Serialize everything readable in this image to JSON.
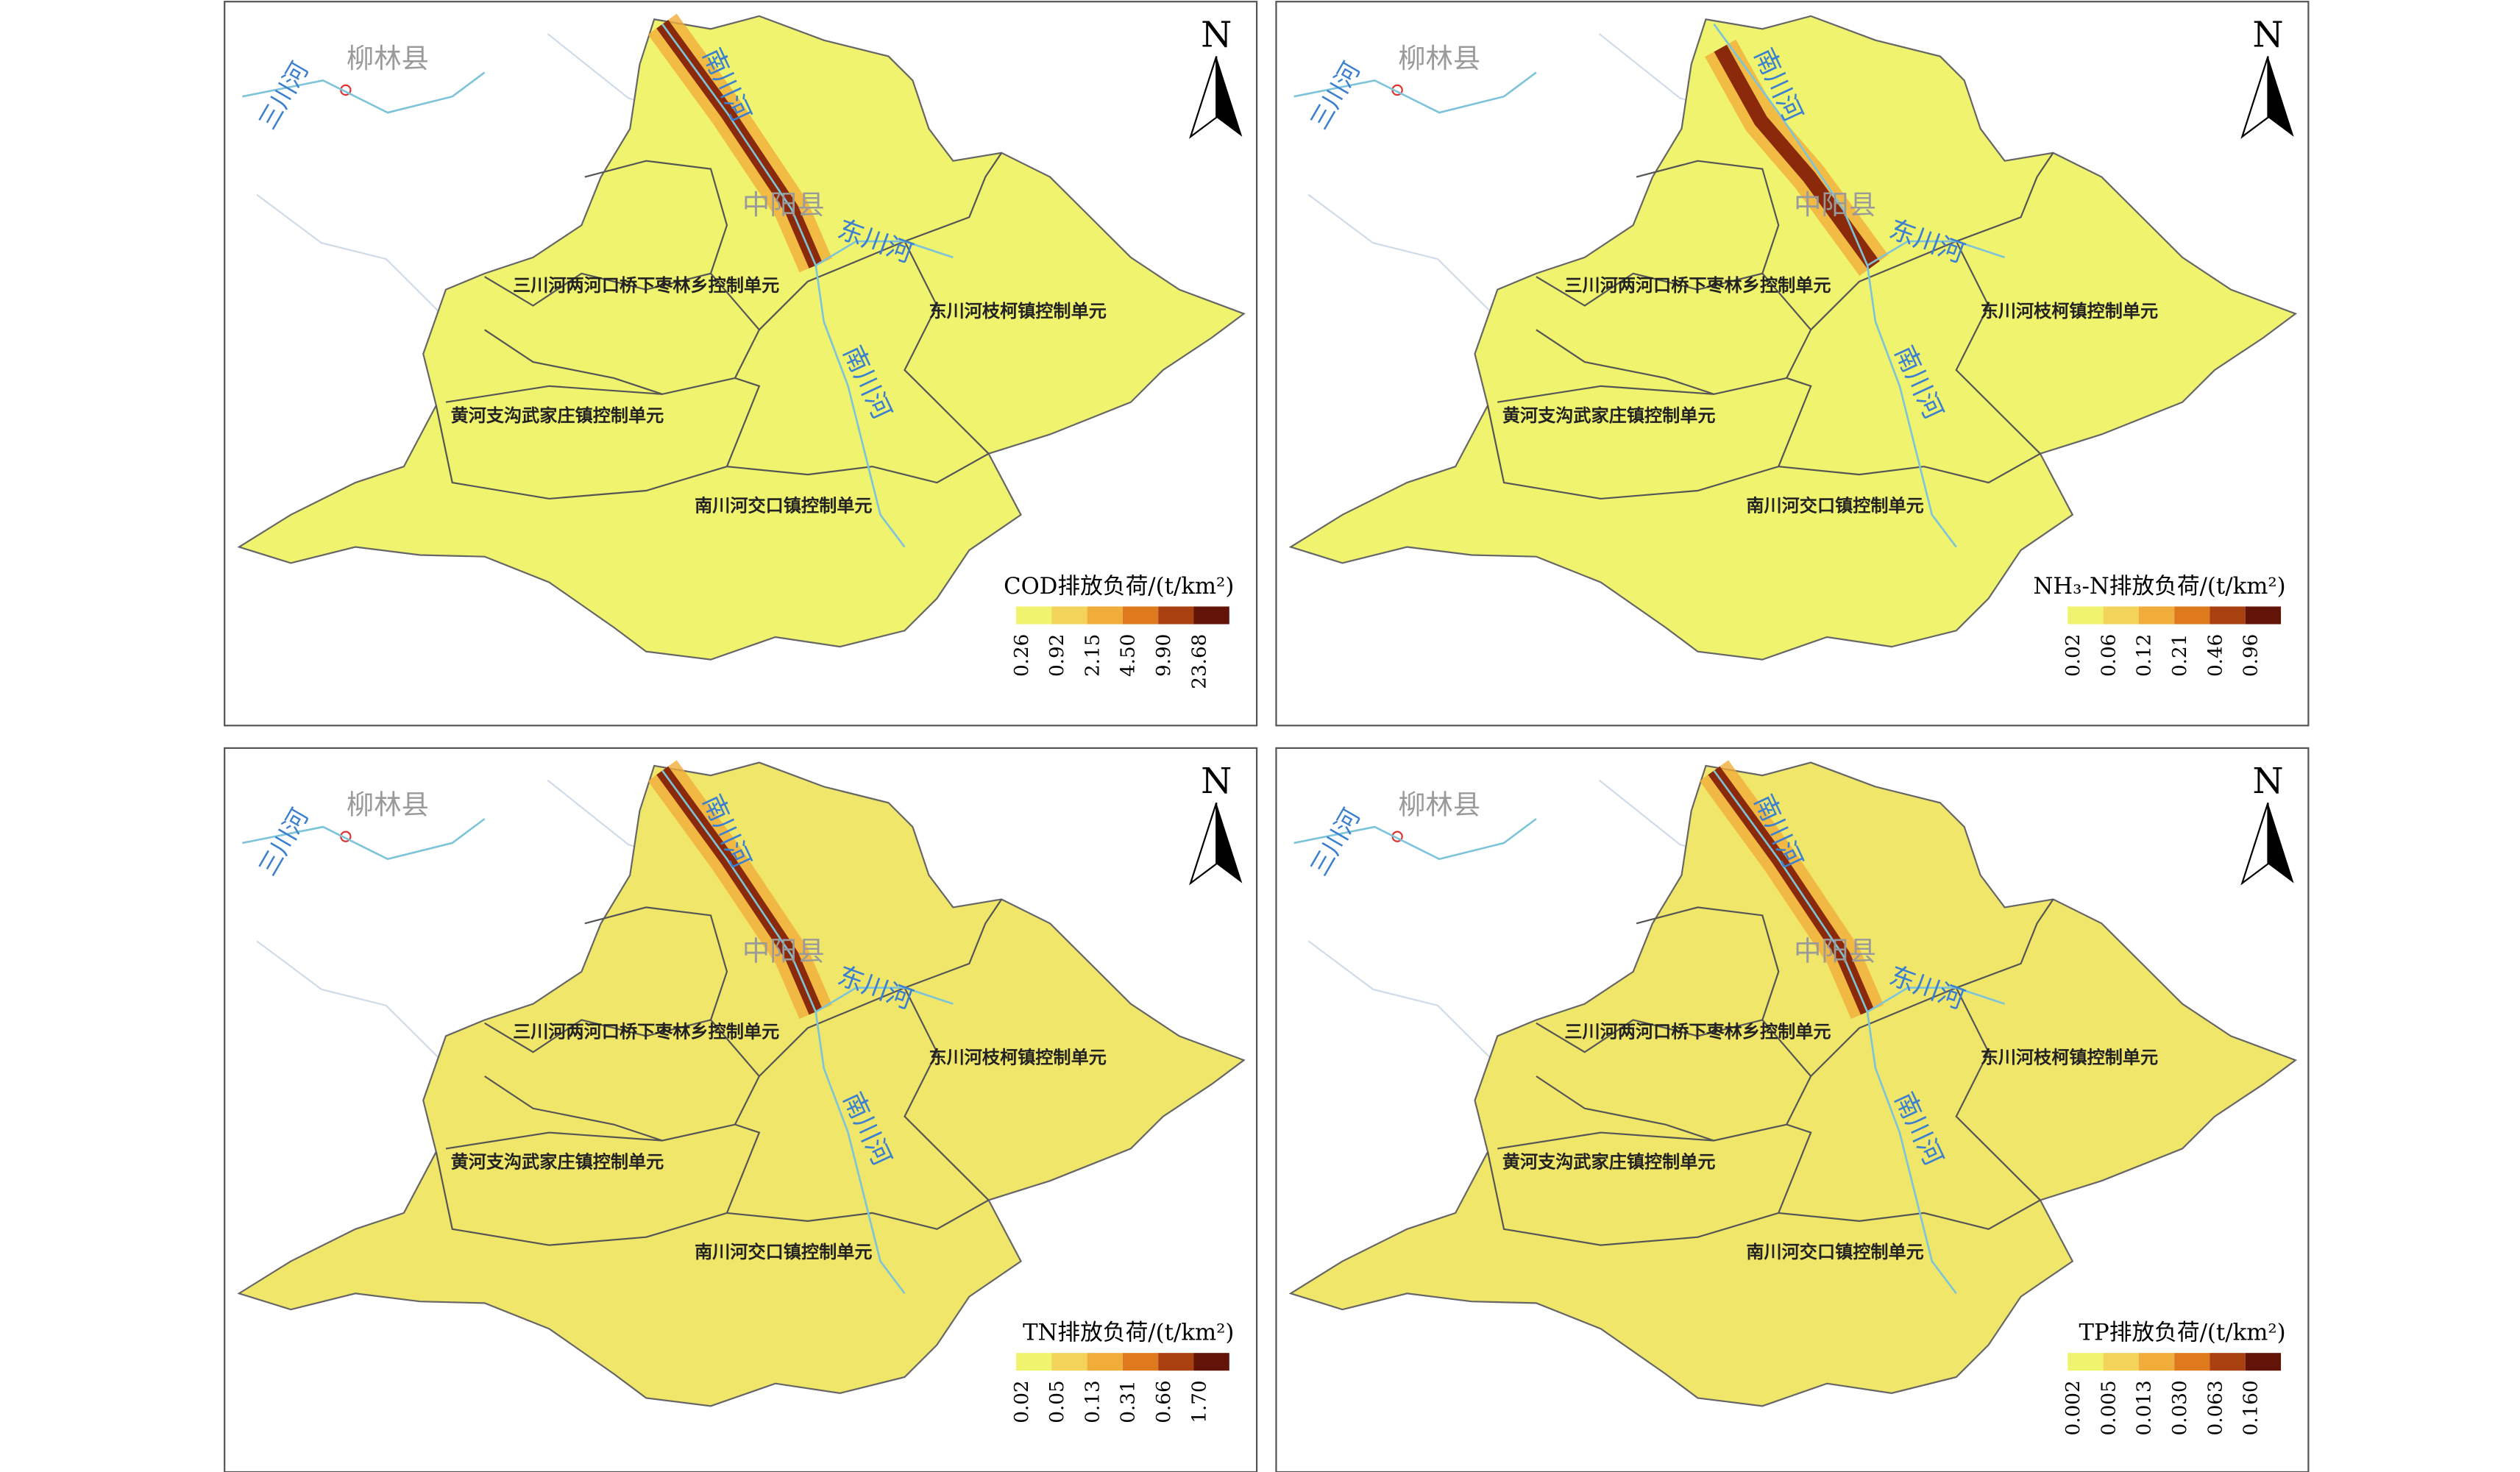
{
  "panels": [
    {
      "north": "N",
      "legend_title": "COD排放负荷/(t/km²)",
      "legend_ticks": [
        "0.26",
        "0.92",
        "2.15",
        "4.50",
        "9.90",
        "23.68"
      ],
      "places": [
        "柳林县",
        "三川河",
        "南川河",
        "中阳县",
        "东川河",
        "南川河",
        "三川河两河口桥下枣林乡控制单元",
        "东川河枝柯镇控制单元",
        "黄河支沟武家庄镇控制单元",
        "南川河交口镇控制单元"
      ]
    },
    {
      "north": "N",
      "legend_title": "NH₃-N排放负荷/(t/km²)",
      "legend_ticks": [
        "0.02",
        "0.06",
        "0.12",
        "0.21",
        "0.46",
        "0.96"
      ],
      "places": [
        "柳林县",
        "三川河",
        "南川河",
        "中阳县",
        "东川河",
        "南川河",
        "三川河两河口桥下枣林乡控制单元",
        "东川河枝柯镇控制单元",
        "黄河支沟武家庄镇控制单元",
        "南川河交口镇控制单元"
      ]
    },
    {
      "north": "N",
      "legend_title": "TN排放负荷/(t/km²)",
      "legend_ticks": [
        "0.02",
        "0.05",
        "0.13",
        "0.31",
        "0.66",
        "1.70"
      ],
      "places": [
        "柳林县",
        "三川河",
        "南川河",
        "中阳县",
        "东川河",
        "南川河",
        "三川河两河口桥下枣林乡控制单元",
        "东川河枝柯镇控制单元",
        "黄河支沟武家庄镇控制单元",
        "南川河交口镇控制单元"
      ]
    },
    {
      "north": "N",
      "legend_title": "TP排放负荷/(t/km²)",
      "legend_ticks": [
        "0.002",
        "0.005",
        "0.013",
        "0.030",
        "0.063",
        "0.160"
      ],
      "places": [
        "柳林县",
        "三川河",
        "南川河",
        "中阳县",
        "东川河",
        "南川河",
        "三川河两河口桥下枣林乡控制单元",
        "东川河枝柯镇控制单元",
        "黄河支沟武家庄镇控制单元",
        "南川河交口镇控制单元"
      ]
    }
  ]
}
